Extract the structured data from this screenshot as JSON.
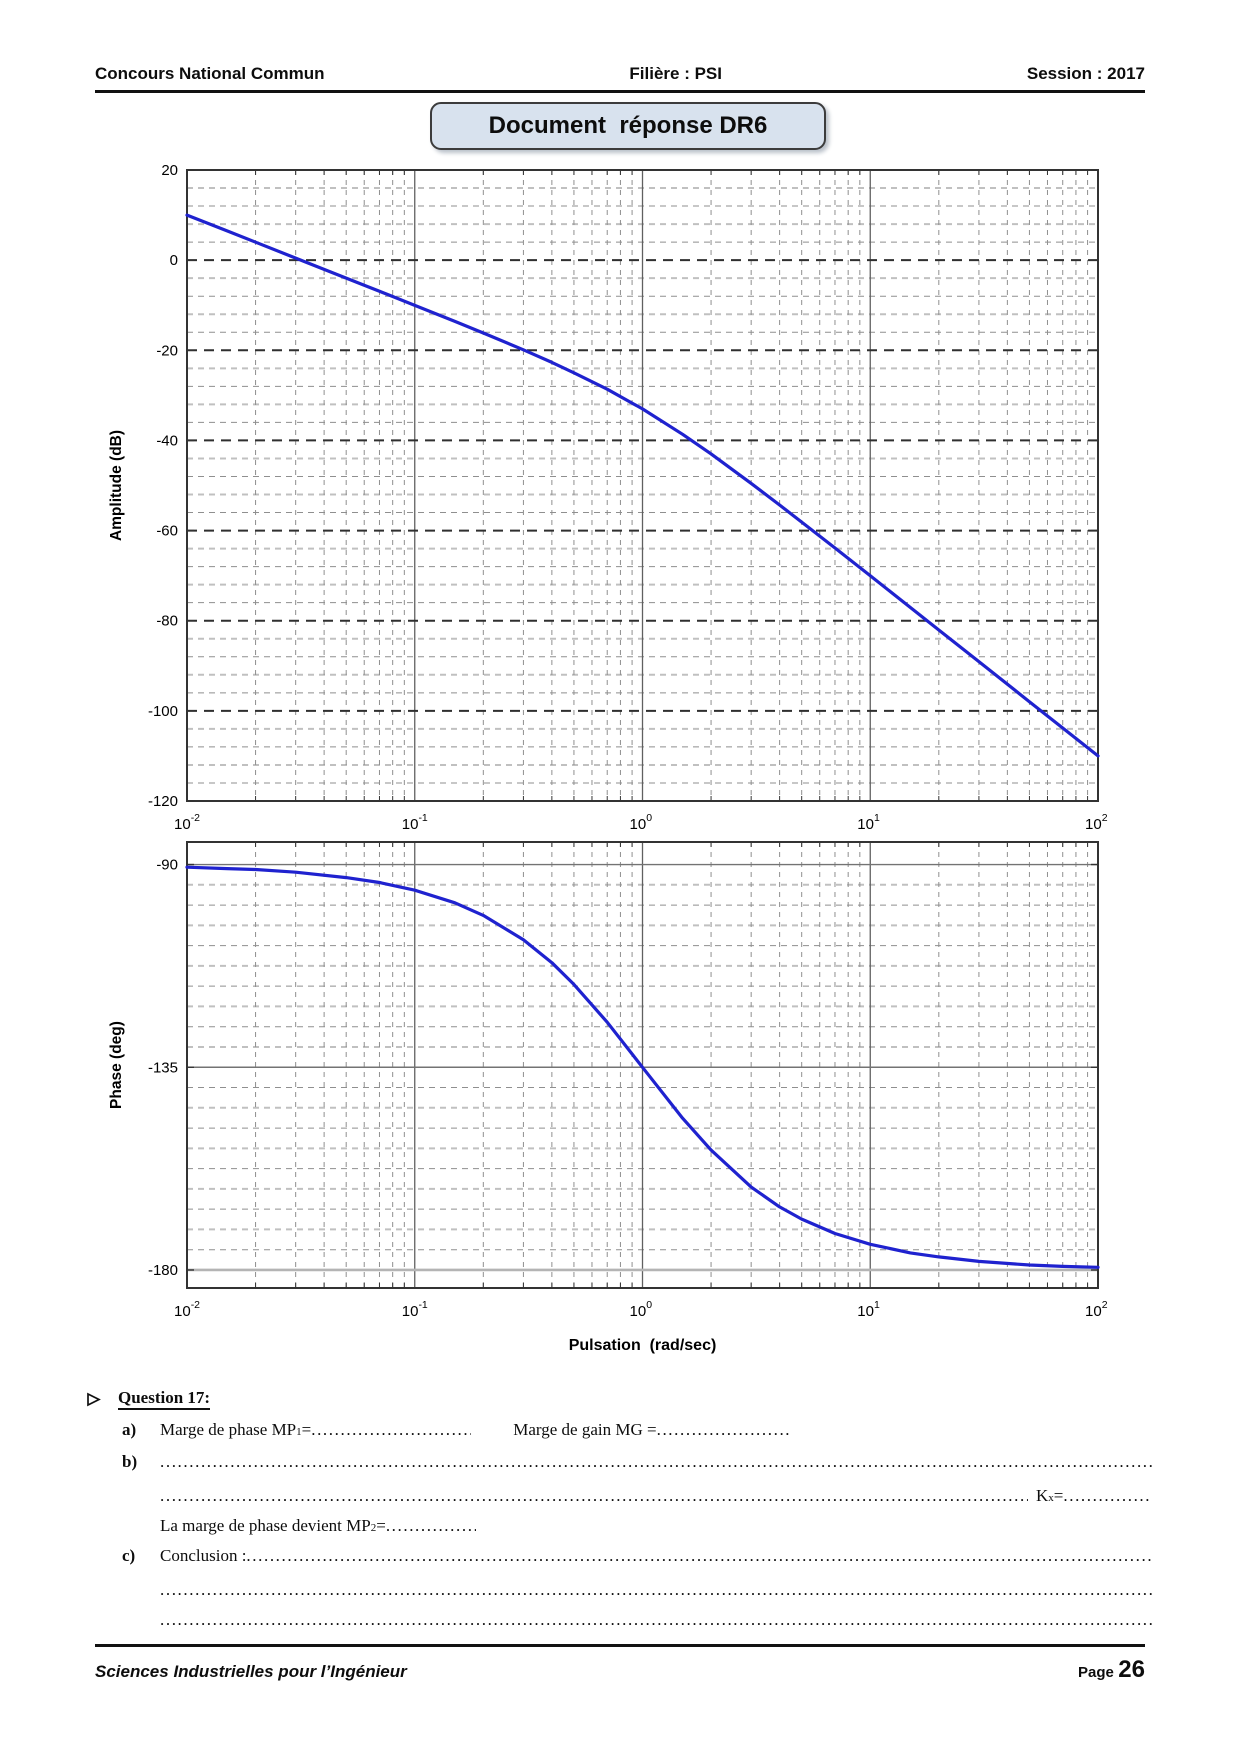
{
  "header": {
    "left": "Concours National Commun",
    "center": "Filière : PSI",
    "right": "Session : 2017"
  },
  "title_box": {
    "label": "Document  réponse DR6"
  },
  "chart_data": [
    {
      "id": "magnitude",
      "type": "line",
      "title": "",
      "ylabel": "Amplitude (dB)",
      "xlabel": "",
      "x_scale": "log",
      "x_exponents": [
        -2,
        -1,
        0,
        1,
        2
      ],
      "x_base": "10",
      "ylim": [
        -120,
        20
      ],
      "yticks": [
        20,
        0,
        -20,
        -40,
        -60,
        -80,
        -100,
        -120
      ],
      "yminor_step": 4,
      "yminor_anchor": 20,
      "grid": true,
      "legend": "none",
      "series": [
        {
          "name": "gain",
          "points": [
            [
              0.01,
              10.0
            ],
            [
              0.015,
              6.48
            ],
            [
              0.02,
              3.98
            ],
            [
              0.03,
              0.46
            ],
            [
              0.04,
              -2.05
            ],
            [
              0.06,
              -5.57
            ],
            [
              0.08,
              -8.06
            ],
            [
              0.1,
              -10.04
            ],
            [
              0.15,
              -13.6
            ],
            [
              0.2,
              -16.16
            ],
            [
              0.3,
              -19.9
            ],
            [
              0.4,
              -22.68
            ],
            [
              0.5,
              -25.0
            ],
            [
              0.7,
              -28.63
            ],
            [
              1,
              -33.01
            ],
            [
              1.5,
              -38.65
            ],
            [
              2,
              -43.0
            ],
            [
              3,
              -49.54
            ],
            [
              4,
              -54.33
            ],
            [
              5,
              -58.13
            ],
            [
              7,
              -63.87
            ],
            [
              10,
              -70.04
            ],
            [
              15,
              -77.07
            ],
            [
              20,
              -82.05
            ],
            [
              30,
              -89.08
            ],
            [
              50,
              -97.97
            ],
            [
              70,
              -103.8
            ],
            [
              100,
              -110.0
            ]
          ]
        }
      ]
    },
    {
      "id": "phase",
      "type": "line",
      "title": "",
      "ylabel": "Phase (deg)",
      "xlabel": "Pulsation  (rad/sec)",
      "x_scale": "log",
      "x_exponents": [
        -2,
        -1,
        0,
        1,
        2
      ],
      "x_base": "10",
      "ylim": [
        -184,
        -85
      ],
      "yticks": [
        -90,
        -135,
        -180
      ],
      "yminor_step": 4.5,
      "yminor_anchor": -90,
      "grid": true,
      "legend": "none",
      "series": [
        {
          "name": "phase",
          "points": [
            [
              0.01,
              -90.6
            ],
            [
              0.015,
              -90.9
            ],
            [
              0.02,
              -91.1
            ],
            [
              0.03,
              -91.7
            ],
            [
              0.05,
              -92.9
            ],
            [
              0.07,
              -94.0
            ],
            [
              0.1,
              -95.7
            ],
            [
              0.15,
              -98.5
            ],
            [
              0.2,
              -101.3
            ],
            [
              0.3,
              -106.7
            ],
            [
              0.4,
              -111.8
            ],
            [
              0.5,
              -116.6
            ],
            [
              0.7,
              -125.0
            ],
            [
              1,
              -135.0
            ],
            [
              1.5,
              -146.3
            ],
            [
              2,
              -153.4
            ],
            [
              3,
              -161.6
            ],
            [
              4,
              -166.0
            ],
            [
              5,
              -168.7
            ],
            [
              7,
              -171.9
            ],
            [
              10,
              -174.3
            ],
            [
              15,
              -176.2
            ],
            [
              20,
              -177.1
            ],
            [
              30,
              -178.1
            ],
            [
              50,
              -178.9
            ],
            [
              70,
              -179.2
            ],
            [
              100,
              -179.4
            ]
          ]
        }
      ]
    }
  ],
  "question": {
    "heading": "Question 17:",
    "a_label": "a)",
    "a_text1": "Marge de phase MP",
    "a_sub1": "1",
    "a_eq1": " =",
    "a_text2": "Marge de gain MG =",
    "b_label": "b)",
    "kx_text": "K",
    "kx_sub": "x",
    "kx_eq": " = ",
    "b3_text": "La marge de phase devient MP",
    "b3_sub": "2",
    "b3_eq": " =",
    "c_label": "c)",
    "c_text": "Conclusion :"
  },
  "dots": {
    "leader": "...................................................................................................................................................................................................................................................................................................................."
  },
  "footer": {
    "left": "Sciences Industrielles pour l’Ingénieur",
    "page_label": "Page",
    "page_number": "26"
  },
  "colors": {
    "curve": "#1f22cf",
    "title_box_fill": "#d8e2ee",
    "grid_minor_dark": "#8f8f8f",
    "grid_minor_light": "#c0c0c0",
    "grid_major_dark": "#2f2f2f",
    "decade_line": "#606060",
    "axis_border": "#333333",
    "phase_major": "#737373",
    "phase_180": "#b4b4b4"
  }
}
